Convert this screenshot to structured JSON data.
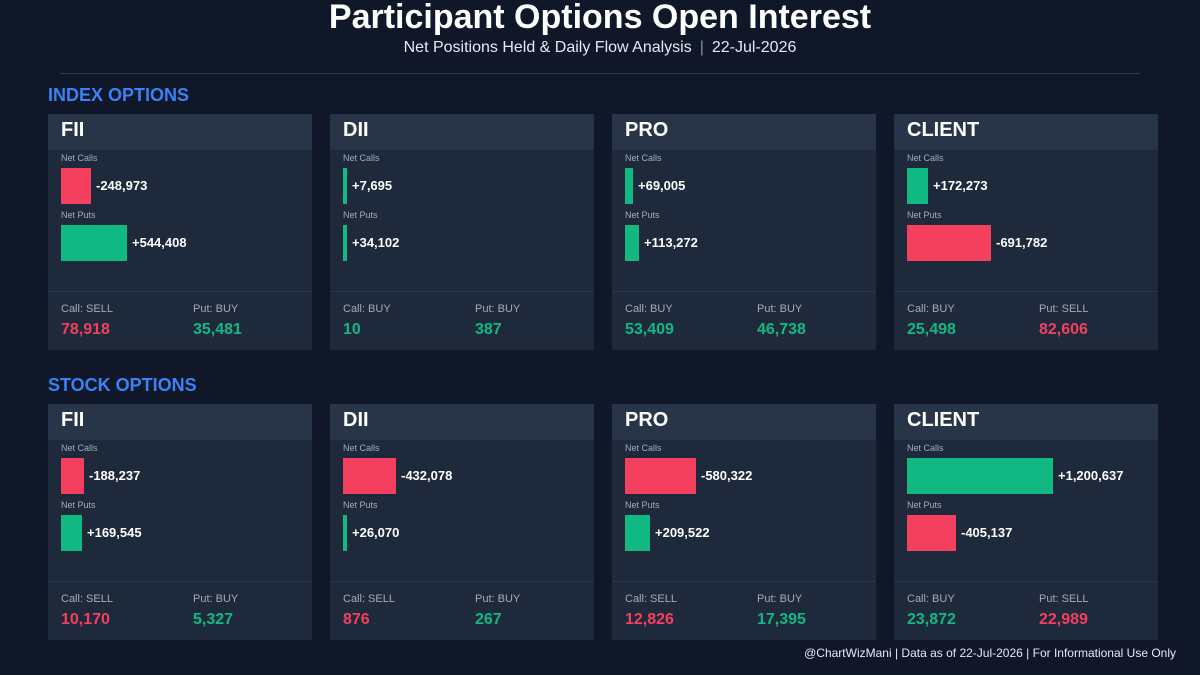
{
  "header": {
    "title": "Participant Options Open Interest",
    "subtitle_left": "Net Positions Held & Daily Flow Analysis",
    "subtitle_sep": "|",
    "subtitle_date": "22-Jul-2026"
  },
  "footer": {
    "text": "@ChartWizMani | Data as of 22-Jul-2026 | For Informational Use Only"
  },
  "colors": {
    "positive": "#10b981",
    "negative": "#f43f5e",
    "section": "#3b82f6",
    "background": "#0f1729",
    "card": "#1e293b",
    "card_header": "#283548"
  },
  "labels": {
    "net_calls": "Net Calls",
    "net_puts": "Net Puts"
  },
  "chart_data": [
    {
      "type": "bar",
      "section": "INDEX OPTIONS",
      "scale_max": 1200637,
      "participants": [
        {
          "name": "FII",
          "net_calls": -248973,
          "net_calls_label": "-248,973",
          "net_puts": 544408,
          "net_puts_label": "+544,408",
          "call_flow_label": "Call: SELL",
          "call_flow_value": "78,918",
          "call_flow_color": "#f43f5e",
          "put_flow_label": "Put: BUY",
          "put_flow_value": "35,481",
          "put_flow_color": "#10b981"
        },
        {
          "name": "DII",
          "net_calls": 7695,
          "net_calls_label": "+7,695",
          "net_puts": 34102,
          "net_puts_label": "+34,102",
          "call_flow_label": "Call: BUY",
          "call_flow_value": "10",
          "call_flow_color": "#10b981",
          "put_flow_label": "Put: BUY",
          "put_flow_value": "387",
          "put_flow_color": "#10b981"
        },
        {
          "name": "PRO",
          "net_calls": 69005,
          "net_calls_label": "+69,005",
          "net_puts": 113272,
          "net_puts_label": "+113,272",
          "call_flow_label": "Call: BUY",
          "call_flow_value": "53,409",
          "call_flow_color": "#10b981",
          "put_flow_label": "Put: BUY",
          "put_flow_value": "46,738",
          "put_flow_color": "#10b981"
        },
        {
          "name": "CLIENT",
          "net_calls": 172273,
          "net_calls_label": "+172,273",
          "net_puts": -691782,
          "net_puts_label": "-691,782",
          "call_flow_label": "Call: BUY",
          "call_flow_value": "25,498",
          "call_flow_color": "#10b981",
          "put_flow_label": "Put: SELL",
          "put_flow_value": "82,606",
          "put_flow_color": "#f43f5e"
        }
      ]
    },
    {
      "type": "bar",
      "section": "STOCK OPTIONS",
      "scale_max": 1200637,
      "participants": [
        {
          "name": "FII",
          "net_calls": -188237,
          "net_calls_label": "-188,237",
          "net_puts": 169545,
          "net_puts_label": "+169,545",
          "call_flow_label": "Call: SELL",
          "call_flow_value": "10,170",
          "call_flow_color": "#f43f5e",
          "put_flow_label": "Put: BUY",
          "put_flow_value": "5,327",
          "put_flow_color": "#10b981"
        },
        {
          "name": "DII",
          "net_calls": -432078,
          "net_calls_label": "-432,078",
          "net_puts": 26070,
          "net_puts_label": "+26,070",
          "call_flow_label": "Call: SELL",
          "call_flow_value": "876",
          "call_flow_color": "#f43f5e",
          "put_flow_label": "Put: BUY",
          "put_flow_value": "267",
          "put_flow_color": "#10b981"
        },
        {
          "name": "PRO",
          "net_calls": -580322,
          "net_calls_label": "-580,322",
          "net_puts": 209522,
          "net_puts_label": "+209,522",
          "call_flow_label": "Call: SELL",
          "call_flow_value": "12,826",
          "call_flow_color": "#f43f5e",
          "put_flow_label": "Put: BUY",
          "put_flow_value": "17,395",
          "put_flow_color": "#10b981"
        },
        {
          "name": "CLIENT",
          "net_calls": 1200637,
          "net_calls_label": "+1,200,637",
          "net_puts": -405137,
          "net_puts_label": "-405,137",
          "call_flow_label": "Call: BUY",
          "call_flow_value": "23,872",
          "call_flow_color": "#10b981",
          "put_flow_label": "Put: SELL",
          "put_flow_value": "22,989",
          "put_flow_color": "#f43f5e"
        }
      ]
    }
  ]
}
